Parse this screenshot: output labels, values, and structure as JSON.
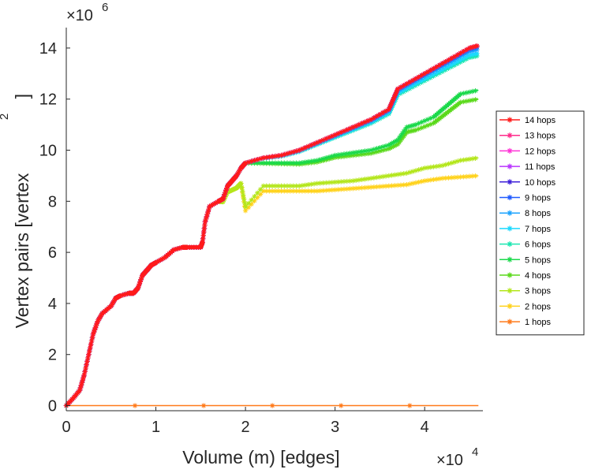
{
  "chart_data": {
    "type": "line",
    "xlabel": "Volume (m) [edges]",
    "ylabel": "Vertex pairs [vertex",
    "ylabel_superscript": "2",
    "ylabel_close": "]",
    "x_exponent_label": "×10",
    "x_exponent_power": "4",
    "y_exponent_label": "×10",
    "y_exponent_power": "6",
    "xlim": [
      0,
      4.65
    ],
    "ylim": [
      -0.2,
      14.8
    ],
    "x_units_scale": 10000,
    "y_units_scale": 1000000,
    "x_ticks": [
      0,
      1,
      2,
      3,
      4
    ],
    "x_tick_labels": [
      "0",
      "1",
      "2",
      "3",
      "4"
    ],
    "y_ticks": [
      0,
      2,
      4,
      6,
      8,
      10,
      12,
      14
    ],
    "y_tick_labels": [
      "0",
      "2",
      "4",
      "6",
      "8",
      "10",
      "12",
      "14"
    ],
    "grid": false,
    "legend_position": "right",
    "series": [
      {
        "name": "14 hops",
        "color": "#ff1a1a",
        "end_value": 14.1
      },
      {
        "name": "13 hops",
        "color": "#ff2b8a",
        "end_value": 14.1
      },
      {
        "name": "12 hops",
        "color": "#ff33d6",
        "end_value": 14.1
      },
      {
        "name": "11 hops",
        "color": "#b833ff",
        "end_value": 14.1
      },
      {
        "name": "10 hops",
        "color": "#3d1fd9",
        "end_value": 14.1
      },
      {
        "name": "9 hops",
        "color": "#1f5aff",
        "end_value": 14.05
      },
      {
        "name": "8 hops",
        "color": "#1aa3ff",
        "end_value": 13.95
      },
      {
        "name": "7 hops",
        "color": "#1ad9ff",
        "end_value": 13.8
      },
      {
        "name": "6 hops",
        "color": "#1ae6b0",
        "end_value": 13.7
      },
      {
        "name": "5 hops",
        "color": "#1ad94a",
        "end_value": 12.35
      },
      {
        "name": "4 hops",
        "color": "#5ad91a",
        "end_value": 12.0
      },
      {
        "name": "3 hops",
        "color": "#b3e61a",
        "end_value": 9.7
      },
      {
        "name": "2 hops",
        "color": "#ffd21a",
        "end_value": 9.0
      },
      {
        "name": "1 hops",
        "color": "#ff7a1a",
        "end_value": 0.0
      }
    ],
    "shared_curve": {
      "x": [
        0.0,
        0.08,
        0.15,
        0.2,
        0.25,
        0.3,
        0.35,
        0.4,
        0.5,
        0.55,
        0.6,
        0.7,
        0.75,
        0.8,
        0.85,
        0.9,
        0.95,
        1.0,
        1.1,
        1.2,
        1.3,
        1.35,
        1.5,
        1.52,
        1.55,
        1.6,
        1.7,
        1.75,
        1.8,
        1.85,
        1.9,
        1.95,
        2.0
      ],
      "y": [
        0.0,
        0.3,
        0.6,
        1.2,
        2.0,
        2.8,
        3.3,
        3.6,
        3.9,
        4.2,
        4.3,
        4.4,
        4.4,
        4.6,
        5.1,
        5.3,
        5.5,
        5.6,
        5.8,
        6.1,
        6.2,
        6.2,
        6.2,
        6.4,
        7.2,
        7.8,
        8.0,
        8.1,
        8.6,
        8.8,
        9.0,
        9.3,
        9.5
      ]
    },
    "tails": {
      "top": {
        "x": [
          2.0,
          2.2,
          2.4,
          2.6,
          2.8,
          3.0,
          3.2,
          3.4,
          3.6,
          3.65,
          3.7,
          3.9,
          4.1,
          4.3,
          4.5,
          4.6
        ],
        "y": [
          9.5,
          9.7,
          9.8,
          10.0,
          10.3,
          10.6,
          10.9,
          11.2,
          11.6,
          12.0,
          12.4,
          12.8,
          13.2,
          13.6,
          14.0,
          14.1
        ]
      },
      "upper_mid": {
        "x": [
          2.0,
          2.2,
          2.4,
          2.6,
          2.8,
          3.0,
          3.2,
          3.4,
          3.6,
          3.7,
          3.8,
          3.9,
          4.1,
          4.2,
          4.3,
          4.4,
          4.6
        ],
        "y": [
          9.5,
          9.5,
          9.5,
          9.5,
          9.6,
          9.8,
          9.9,
          10.0,
          10.2,
          10.4,
          10.9,
          11.0,
          11.3,
          11.6,
          11.9,
          12.2,
          12.35
        ]
      },
      "lower_mid": {
        "x": [
          2.0,
          2.2,
          2.4,
          2.6,
          2.8,
          3.0,
          3.2,
          3.4,
          3.6,
          3.8,
          4.0,
          4.2,
          4.4,
          4.6
        ],
        "y": [
          8.5,
          8.6,
          8.6,
          8.6,
          8.7,
          8.75,
          8.8,
          8.9,
          9.0,
          9.1,
          9.3,
          9.4,
          9.6,
          9.7
        ]
      },
      "bottom": {
        "x": [
          2.0,
          2.2,
          2.4,
          2.6,
          2.8,
          3.0,
          3.2,
          3.4,
          3.6,
          3.8,
          4.0,
          4.2,
          4.4,
          4.6
        ],
        "y": [
          8.35,
          8.4,
          8.4,
          8.4,
          8.4,
          8.45,
          8.5,
          8.55,
          8.6,
          8.65,
          8.8,
          8.9,
          8.95,
          9.0
        ]
      }
    }
  }
}
